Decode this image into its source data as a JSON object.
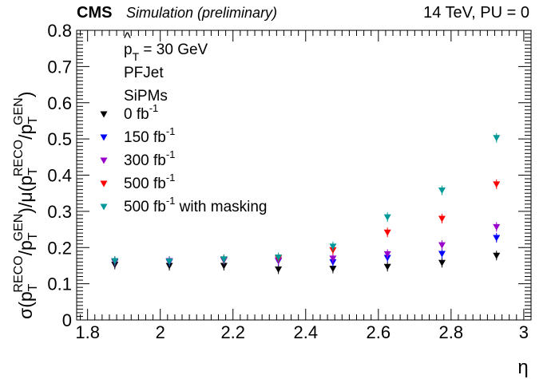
{
  "header": {
    "cms": "CMS",
    "sim": "Simulation (preliminary)",
    "right": "14 TeV, PU = 0"
  },
  "info": {
    "pt_sym": "p",
    "pt_hat": "^",
    "pt_sub": "T",
    "pt_val": " = 30 GeV",
    "jet": "PFJet",
    "sensor": "SiPMs"
  },
  "axis": {
    "xlabel": "η",
    "y_sigma": "σ(p",
    "y_T": "T",
    "y_RECO": "RECO",
    "y_slash_GEN": "/p",
    "y_GEN": "GEN",
    "y_mid": ")/μ(p",
    "y_close": ")"
  },
  "chart_data": {
    "type": "scatter",
    "xlabel": "η",
    "xlim": [
      1.77,
      3.02
    ],
    "ylim": [
      0,
      0.8
    ],
    "x_ticks": [
      1.8,
      2,
      2.2,
      2.4,
      2.6,
      2.8,
      3
    ],
    "x_tick_labels": [
      "1.8",
      "2",
      "2.2",
      "2.4",
      "2.6",
      "2.8",
      "3"
    ],
    "y_ticks": [
      0,
      0.1,
      0.2,
      0.3,
      0.4,
      0.5,
      0.6,
      0.7,
      0.8
    ],
    "y_tick_labels": [
      "0",
      "0.1",
      "0.2",
      "0.3",
      "0.4",
      "0.5",
      "0.6",
      "0.7",
      "0.8"
    ],
    "x": [
      1.875,
      2.025,
      2.175,
      2.325,
      2.475,
      2.625,
      2.775,
      2.925
    ],
    "series": [
      {
        "name": "0 fb",
        "sup": "-1",
        "suffix": "",
        "color": "#000000",
        "values": [
          0.153,
          0.15,
          0.15,
          0.14,
          0.142,
          0.147,
          0.158,
          0.178
        ]
      },
      {
        "name": "150 fb",
        "sup": "-1",
        "suffix": "",
        "color": "#0000ff",
        "values": [
          0.16,
          0.16,
          0.165,
          0.163,
          0.16,
          0.172,
          0.183,
          0.227
        ]
      },
      {
        "name": "300 fb",
        "sup": "-1",
        "suffix": "",
        "color": "#9900cc",
        "values": [
          0.162,
          0.163,
          0.166,
          0.165,
          0.17,
          0.182,
          0.207,
          0.257
        ]
      },
      {
        "name": "500 fb",
        "sup": "-1",
        "suffix": "",
        "color": "#ff0000",
        "values": [
          0.162,
          0.162,
          0.167,
          0.17,
          0.193,
          0.242,
          0.28,
          0.375
        ]
      },
      {
        "name": "500 fb",
        "sup": "-1",
        "suffix": " with masking",
        "color": "#009999",
        "values": [
          0.163,
          0.162,
          0.168,
          0.173,
          0.203,
          0.284,
          0.358,
          0.503
        ]
      }
    ],
    "legend_position": "top-left",
    "grid": false
  }
}
